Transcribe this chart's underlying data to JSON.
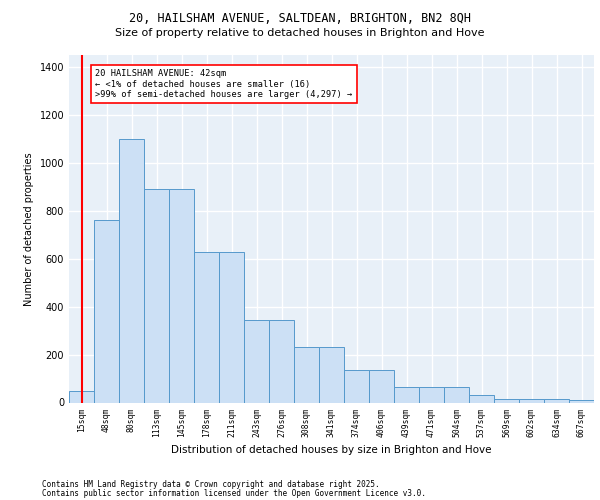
{
  "title1": "20, HAILSHAM AVENUE, SALTDEAN, BRIGHTON, BN2 8QH",
  "title2": "Size of property relative to detached houses in Brighton and Hove",
  "xlabel": "Distribution of detached houses by size in Brighton and Hove",
  "ylabel": "Number of detached properties",
  "categories": [
    "15sqm",
    "48sqm",
    "80sqm",
    "113sqm",
    "145sqm",
    "178sqm",
    "211sqm",
    "243sqm",
    "276sqm",
    "308sqm",
    "341sqm",
    "374sqm",
    "406sqm",
    "439sqm",
    "471sqm",
    "504sqm",
    "537sqm",
    "569sqm",
    "602sqm",
    "634sqm",
    "667sqm"
  ],
  "bar_heights": [
    47,
    760,
    1100,
    890,
    890,
    630,
    630,
    345,
    345,
    230,
    230,
    135,
    135,
    65,
    65,
    65,
    30,
    15,
    15,
    15,
    10
  ],
  "annotation_text": "20 HAILSHAM AVENUE: 42sqm\n← <1% of detached houses are smaller (16)\n>99% of semi-detached houses are larger (4,297) →",
  "bar_color": "#cce0f5",
  "bar_edge_color": "#5599cc",
  "background_color": "#e8f0f8",
  "grid_color": "#ffffff",
  "ylim": [
    0,
    1450
  ],
  "yticks": [
    0,
    200,
    400,
    600,
    800,
    1000,
    1200,
    1400
  ],
  "footer1": "Contains HM Land Registry data © Crown copyright and database right 2025.",
  "footer2": "Contains public sector information licensed under the Open Government Licence v3.0."
}
